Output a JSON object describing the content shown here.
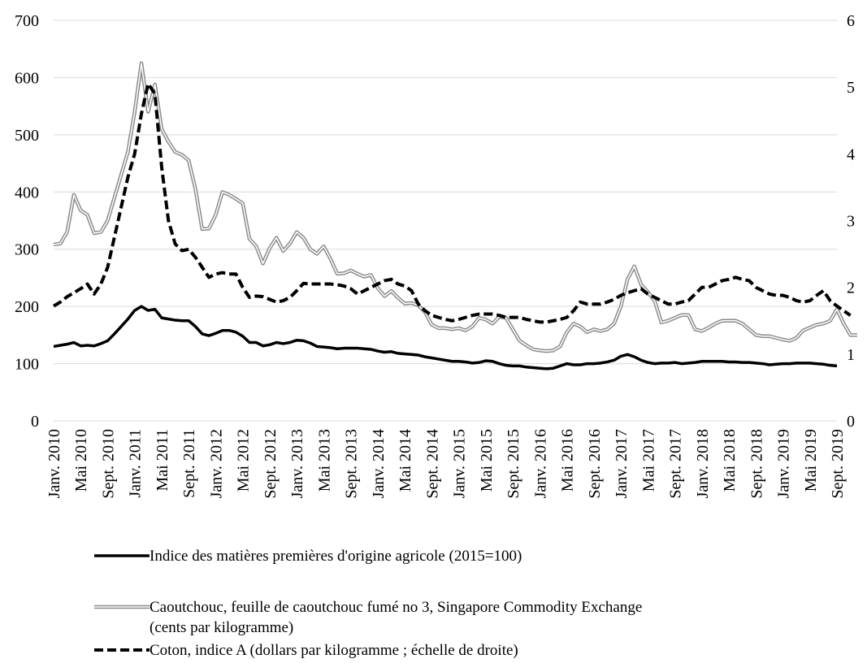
{
  "chart_data": {
    "type": "line",
    "title": "",
    "xlabel": "",
    "ylabel": "",
    "ylim": [
      0,
      700
    ],
    "y2lim": [
      0,
      6
    ],
    "yticks": [
      0,
      100,
      200,
      300,
      400,
      500,
      600,
      700
    ],
    "y2ticks": [
      0,
      1,
      2,
      3,
      4,
      5,
      6
    ],
    "grid": "horizontal",
    "legend_position": "bottom",
    "x_tick_labels": [
      "Janv. 2010",
      "Mai 2010",
      "Sept. 2010",
      "Janv. 2011",
      "Mai 2011",
      "Sept. 2011",
      "Janv. 2012",
      "Mai 2012",
      "Sept. 2012",
      "Janv. 2013",
      "Mai 2013",
      "Sept. 2013",
      "Janv. 2014",
      "Mai 2014",
      "Sept. 2014",
      "Janv. 2015",
      "Mai 2015",
      "Sept. 2015",
      "Janv. 2016",
      "Mai 2016",
      "Sept. 2016",
      "Janv. 2017",
      "Mai 2017",
      "Sept. 2017",
      "Janv. 2018",
      "Mai 2018",
      "Sept. 2018",
      "Janv. 2019",
      "Mai 2019",
      "Sept. 2019"
    ],
    "series": [
      {
        "name": "Indice des matières premières d'origine agricole (2015=100)",
        "axis": "left",
        "style": "solid-black",
        "values": [
          130,
          132,
          134,
          137,
          131,
          132,
          131,
          135,
          140,
          152,
          165,
          178,
          193,
          200,
          193,
          195,
          180,
          178,
          176,
          175,
          175,
          165,
          152,
          149,
          153,
          158,
          158,
          155,
          148,
          137,
          137,
          131,
          133,
          137,
          135,
          137,
          141,
          140,
          136,
          130,
          129,
          128,
          126,
          127,
          127,
          127,
          126,
          125,
          122,
          120,
          121,
          118,
          117,
          116,
          115,
          112,
          110,
          108,
          106,
          104,
          104,
          103,
          101,
          102,
          105,
          104,
          100,
          97,
          96,
          96,
          94,
          93,
          92,
          91,
          92,
          96,
          100,
          98,
          98,
          100,
          100,
          101,
          103,
          106,
          113,
          116,
          112,
          106,
          102,
          100,
          101,
          101,
          102,
          100,
          101,
          102,
          104,
          104,
          104,
          104,
          103,
          103,
          102,
          102,
          101,
          100,
          98,
          99,
          100,
          100,
          101,
          101,
          101,
          100,
          99,
          97,
          96
        ],
        "values_note": "monthly, Janv. 2010 – Sept. 2019"
      },
      {
        "name": "Caoutchouc, feuille de caoutchouc fumé no 3, Singapore Commodity Exchange\n(cents par kilogramme)",
        "axis": "left",
        "style": "double-gray",
        "values": [
          308,
          310,
          330,
          395,
          368,
          360,
          328,
          330,
          350,
          390,
          430,
          470,
          540,
          625,
          540,
          588,
          510,
          488,
          470,
          465,
          455,
          405,
          335,
          336,
          360,
          400,
          395,
          388,
          380,
          318,
          305,
          275,
          302,
          320,
          297,
          310,
          330,
          320,
          300,
          292,
          305,
          283,
          257,
          258,
          263,
          257,
          252,
          255,
          232,
          218,
          227,
          215,
          205,
          206,
          202,
          190,
          168,
          162,
          162,
          160,
          162,
          158,
          165,
          180,
          177,
          170,
          182,
          180,
          160,
          140,
          132,
          125,
          123,
          122,
          123,
          130,
          155,
          170,
          165,
          155,
          160,
          157,
          160,
          170,
          200,
          248,
          270,
          238,
          225,
          210,
          172,
          175,
          180,
          185,
          185,
          160,
          157,
          163,
          170,
          175,
          175,
          175,
          170,
          160,
          150,
          148,
          148,
          145,
          142,
          140,
          145,
          158,
          163,
          168,
          170,
          175,
          195,
          170,
          150,
          150
        ],
        "values_note": "monthly"
      },
      {
        "name": "Coton, indice A (dollars par kilogramme ; échelle de droite)",
        "axis": "right",
        "style": "dashed-black",
        "values": [
          1.72,
          1.78,
          1.86,
          1.92,
          1.98,
          2.05,
          1.9,
          2.05,
          2.3,
          2.75,
          3.2,
          3.65,
          4.0,
          4.6,
          5.05,
          4.9,
          3.8,
          3.0,
          2.65,
          2.55,
          2.57,
          2.45,
          2.3,
          2.15,
          2.2,
          2.22,
          2.2,
          2.2,
          2.0,
          1.85,
          1.87,
          1.86,
          1.82,
          1.78,
          1.8,
          1.85,
          1.95,
          2.06,
          2.05,
          2.05,
          2.05,
          2.05,
          2.04,
          2.02,
          1.98,
          1.9,
          1.95,
          2.0,
          2.05,
          2.1,
          2.12,
          2.05,
          2.02,
          1.95,
          1.75,
          1.65,
          1.58,
          1.55,
          1.52,
          1.5,
          1.52,
          1.55,
          1.58,
          1.6,
          1.6,
          1.6,
          1.58,
          1.55,
          1.55,
          1.55,
          1.52,
          1.5,
          1.48,
          1.48,
          1.5,
          1.52,
          1.55,
          1.65,
          1.78,
          1.75,
          1.75,
          1.75,
          1.78,
          1.82,
          1.88,
          1.92,
          1.95,
          1.98,
          1.9,
          1.85,
          1.8,
          1.75,
          1.75,
          1.78,
          1.8,
          1.9,
          2.0,
          2.0,
          2.05,
          2.1,
          2.12,
          2.15,
          2.12,
          2.1,
          2.0,
          1.95,
          1.9,
          1.88,
          1.88,
          1.85,
          1.8,
          1.78,
          1.8,
          1.88,
          1.95,
          1.8,
          1.72,
          1.65,
          1.58
        ],
        "values_note": "monthly, right axis"
      }
    ]
  },
  "legend": {
    "items": [
      {
        "label": "Indice des matières premières d'origine agricole (2015=100)",
        "style": "solid-black"
      },
      {
        "label": "Caoutchouc, feuille de caoutchouc fumé no 3, Singapore Commodity Exchange\n(cents par kilogramme)",
        "style": "double-gray"
      },
      {
        "label": "Coton, indice A (dollars par kilogramme ; échelle de droite)",
        "style": "dashed-black"
      }
    ]
  },
  "colors": {
    "index_line": "#000000",
    "rubber_line": "#8c8c8c",
    "cotton_line": "#000000",
    "grid": "#d9d9d9"
  }
}
